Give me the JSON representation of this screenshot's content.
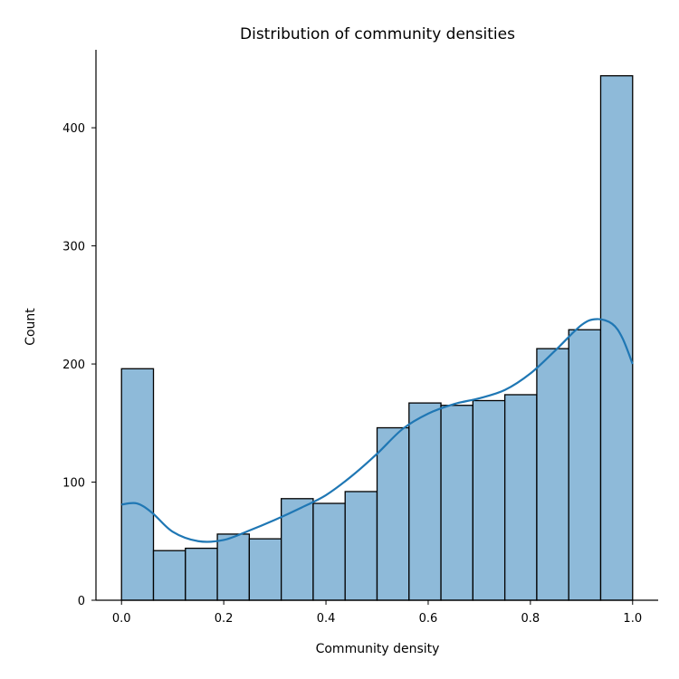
{
  "chart_data": {
    "type": "bar",
    "title": "Distribution of community densities",
    "xlabel": "Community density",
    "ylabel": "Count",
    "xlim": [
      -0.05,
      1.05
    ],
    "ylim": [
      0,
      466
    ],
    "xticks": [
      0.0,
      0.2,
      0.4,
      0.6,
      0.8,
      1.0
    ],
    "xtick_labels": [
      "0.0",
      "0.2",
      "0.4",
      "0.6",
      "0.8",
      "1.0"
    ],
    "yticks": [
      0,
      100,
      200,
      300,
      400
    ],
    "ytick_labels": [
      "0",
      "100",
      "200",
      "300",
      "400"
    ],
    "grid": false,
    "bins": [
      {
        "x0": 0.0,
        "x1": 0.0625,
        "count": 196
      },
      {
        "x0": 0.0625,
        "x1": 0.125,
        "count": 42
      },
      {
        "x0": 0.125,
        "x1": 0.1875,
        "count": 44
      },
      {
        "x0": 0.1875,
        "x1": 0.25,
        "count": 56
      },
      {
        "x0": 0.25,
        "x1": 0.3125,
        "count": 52
      },
      {
        "x0": 0.3125,
        "x1": 0.375,
        "count": 86
      },
      {
        "x0": 0.375,
        "x1": 0.4375,
        "count": 82
      },
      {
        "x0": 0.4375,
        "x1": 0.5,
        "count": 92
      },
      {
        "x0": 0.5,
        "x1": 0.5625,
        "count": 146
      },
      {
        "x0": 0.5625,
        "x1": 0.625,
        "count": 167
      },
      {
        "x0": 0.625,
        "x1": 0.6875,
        "count": 165
      },
      {
        "x0": 0.6875,
        "x1": 0.75,
        "count": 169
      },
      {
        "x0": 0.75,
        "x1": 0.8125,
        "count": 174
      },
      {
        "x0": 0.8125,
        "x1": 0.875,
        "count": 213
      },
      {
        "x0": 0.875,
        "x1": 0.9375,
        "count": 229
      },
      {
        "x0": 0.9375,
        "x1": 1.0,
        "count": 444
      }
    ],
    "kde": {
      "x": [
        0.0,
        0.03,
        0.06,
        0.1,
        0.15,
        0.2,
        0.25,
        0.3,
        0.35,
        0.4,
        0.45,
        0.5,
        0.55,
        0.6,
        0.65,
        0.7,
        0.75,
        0.8,
        0.85,
        0.9,
        0.93,
        0.96,
        0.98,
        1.0
      ],
      "y": [
        81,
        82,
        74,
        58,
        50,
        51,
        59,
        68,
        78,
        89,
        105,
        124,
        145,
        158,
        166,
        171,
        178,
        192,
        212,
        233,
        238,
        234,
        222,
        200
      ]
    },
    "colors": {
      "bar_fill": "#8ebad9",
      "bar_edge": "#000000",
      "kde_line": "#1f77b4",
      "axis": "#000000"
    }
  }
}
